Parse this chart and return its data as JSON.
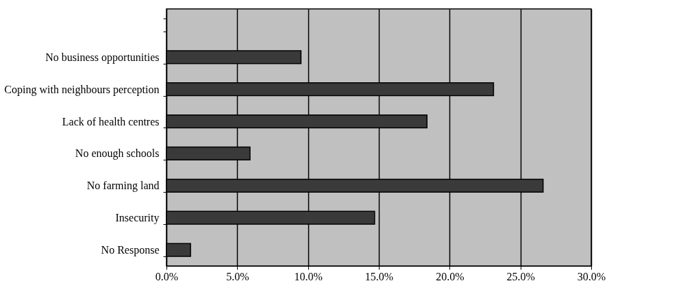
{
  "chart_data": {
    "type": "bar",
    "orientation": "horizontal",
    "categories": [
      null,
      "No business opportunities",
      "Coping with neighbours perception",
      "Lack of health centres",
      "No enough schools",
      "No farming land ",
      "Insecurity",
      "No Response"
    ],
    "values": [
      null,
      9.5,
      23.1,
      18.4,
      5.9,
      26.6,
      14.7,
      1.7
    ],
    "color": "#3a3a3a",
    "xlim": [
      0,
      30
    ],
    "xticks": [
      {
        "value": 0,
        "label": "0.0%"
      },
      {
        "value": 5,
        "label": "5.0%"
      },
      {
        "value": 10,
        "label": "10.0%"
      },
      {
        "value": 15,
        "label": "15.0%"
      },
      {
        "value": 20,
        "label": "20.0%"
      },
      {
        "value": 25,
        "label": "25.0%"
      },
      {
        "value": 30,
        "label": "30.0%"
      }
    ],
    "grid": "x"
  }
}
